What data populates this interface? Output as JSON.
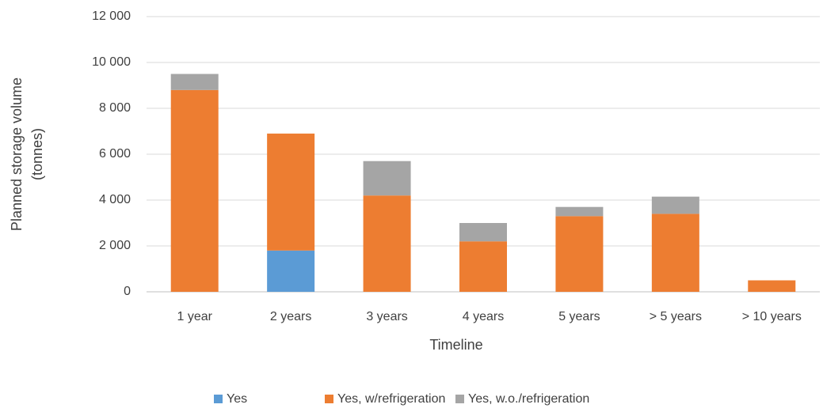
{
  "chart_data": {
    "type": "stacked_bar",
    "y_label": [
      "Planned storage volume",
      "(tonnes)"
    ],
    "x_label": "Timeline",
    "categories": [
      "1 year",
      "2 years",
      "3 years",
      "4 years",
      "5 years",
      "> 5 years",
      "> 10 years"
    ],
    "series": [
      {
        "name": "Yes",
        "color": "#5b9bd5",
        "values": [
          null,
          1800,
          null,
          null,
          null,
          null,
          null
        ]
      },
      {
        "name": "Yes, w/refrigeration",
        "color": "#ed7d31",
        "values": [
          8800,
          5100,
          4200,
          2200,
          3300,
          3400,
          500
        ]
      },
      {
        "name": "Yes, w.o./refrigeration",
        "color": "#a5a5a5",
        "values": [
          700,
          null,
          1500,
          800,
          400,
          750,
          null
        ]
      }
    ],
    "ylim": [
      0,
      12000
    ],
    "yticks": [
      0,
      {
        "value": 2000,
        "label": "2 000"
      },
      {
        "value": 4000,
        "label": "4 000"
      },
      {
        "value": 6000,
        "label": "6 000"
      },
      {
        "value": 8000,
        "label": "8 000"
      },
      {
        "value": 10000,
        "label": "10 000"
      },
      {
        "value": 12000,
        "label": "12 000"
      }
    ],
    "grid": true,
    "legend": "bottom"
  }
}
